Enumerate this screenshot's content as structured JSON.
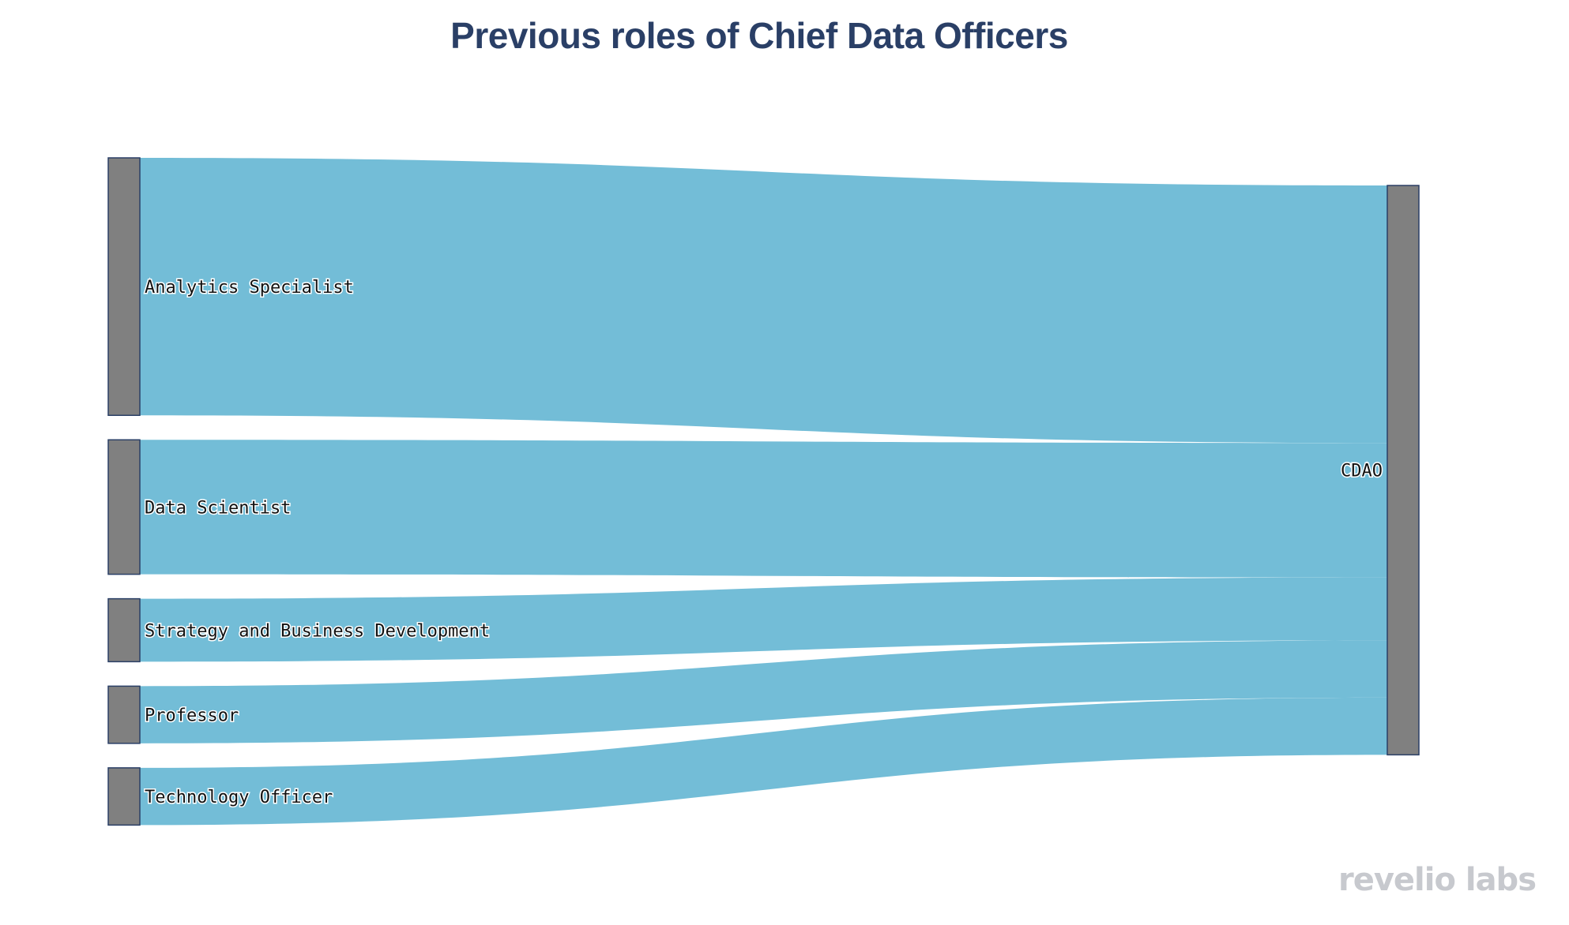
{
  "chart_data": {
    "type": "sankey",
    "title": "Previous roles of Chief Data Officers",
    "sources": [
      "Analytics Specialist",
      "Data Scientist",
      "Strategy and Business Development",
      "Professor",
      "Technology Officer"
    ],
    "target": "CDAO",
    "links": [
      {
        "source": "Analytics Specialist",
        "target": "CDAO",
        "value": 45
      },
      {
        "source": "Data Scientist",
        "target": "CDAO",
        "value": 23.5
      },
      {
        "source": "Strategy and Business Development",
        "target": "CDAO",
        "value": 11
      },
      {
        "source": "Professor",
        "target": "CDAO",
        "value": 10
      },
      {
        "source": "Technology Officer",
        "target": "CDAO",
        "value": 10
      }
    ],
    "colors": {
      "link": "#73bdd7",
      "node": "#808080",
      "node_border": "#2a3f66",
      "label": "#111111"
    }
  },
  "logo": {
    "text": "revelio labs"
  }
}
